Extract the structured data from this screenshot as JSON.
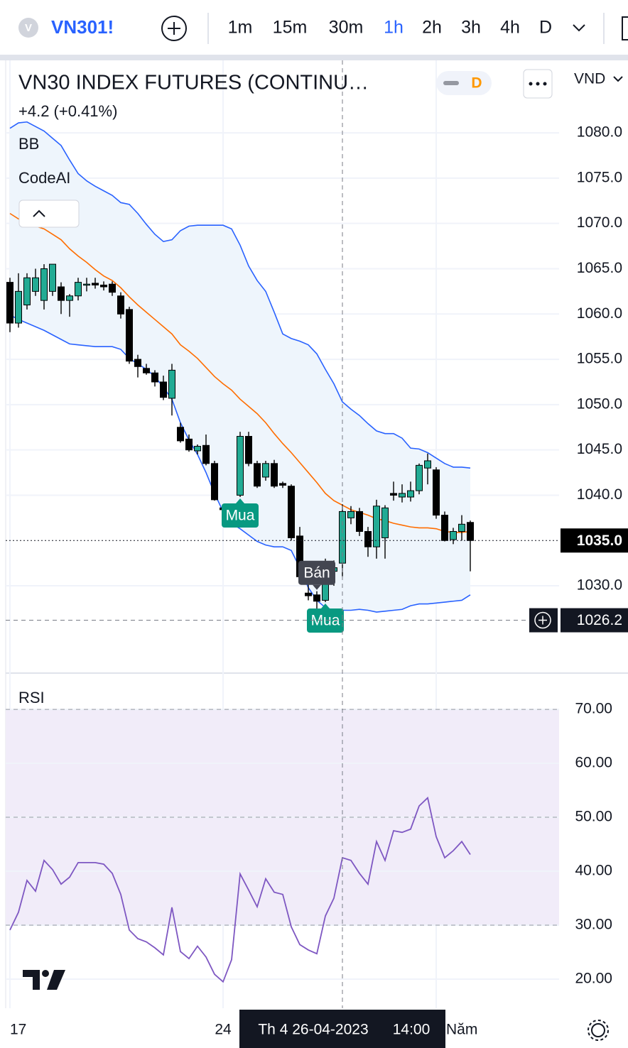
{
  "header": {
    "symbol": "VN301!",
    "logo": "V",
    "timeframes": [
      "1m",
      "15m",
      "30m",
      "1h",
      "2h",
      "3h",
      "4h",
      "D"
    ],
    "active_timeframe": 3
  },
  "legend": {
    "title": "VN30 INDEX FUTURES (CONTINU…",
    "change": "+4.2 (+0.41%)",
    "indicators": [
      "BB",
      "CodeAI"
    ],
    "badge": "D",
    "currency": "VND"
  },
  "crosshair": {
    "date": "Th 4 26-04-2023",
    "time": "14:00",
    "x": 39,
    "price": 1026.2
  },
  "chart_data": [
    {
      "type": "candlestick",
      "categories": [
        "17",
        null,
        null,
        null,
        null,
        null,
        null,
        null,
        null,
        null,
        null,
        null,
        null,
        null,
        null,
        null,
        null,
        null,
        null,
        null,
        null,
        null,
        null,
        null,
        null,
        "24",
        null,
        null,
        null,
        null,
        null,
        null,
        null,
        null,
        null,
        null,
        null,
        null,
        null,
        null,
        null,
        null,
        null,
        null,
        null,
        null,
        null,
        null,
        null,
        null,
        "Năm",
        null,
        null,
        null,
        null
      ],
      "open": [
        1063.5,
        1059,
        1061,
        1062.5,
        1061.5,
        1062.5,
        1063,
        1061.5,
        1062,
        1063.2,
        1063.4,
        1063.2,
        1063.3,
        1062,
        1060.5,
        1055,
        1054,
        1053.5,
        1052.5,
        1050.7,
        1047.5,
        1046.2,
        1044.9,
        1045.5,
        1043.5,
        1038.6,
        1038.5,
        1040,
        1046.5,
        1043.5,
        1042,
        1043.5,
        1041.3,
        1041,
        1035.5,
        1029.2,
        1029,
        1028.4,
        1031.6,
        1032.5,
        1037.5,
        1038.2,
        1036,
        1034.3,
        1035.3,
        1040.2,
        1039.8,
        1039.8,
        1040.5,
        1043,
        1042.8,
        1037.8,
        1035.1,
        1036,
        1037
      ],
      "high": [
        1064,
        1064.5,
        1064.5,
        1065,
        1065.5,
        1065.5,
        1063.5,
        1062.2,
        1064,
        1064,
        1064,
        1063.6,
        1063.6,
        1062.4,
        1060.8,
        1055.5,
        1054.5,
        1053.8,
        1053.2,
        1054.5,
        1048,
        1046.7,
        1045.6,
        1046.7,
        1043.8,
        1038.8,
        1039,
        1047,
        1047,
        1043.8,
        1043.8,
        1043.9,
        1041.5,
        1041.2,
        1036.5,
        1030.5,
        1029.4,
        1033,
        1032.8,
        1039,
        1038.8,
        1038.6,
        1036.5,
        1039.5,
        1038.9,
        1041.5,
        1041.2,
        1041.5,
        1043.5,
        1044.6,
        1043.1,
        1038.2,
        1036.4,
        1037.8,
        1037.2
      ],
      "low": [
        1058,
        1058.5,
        1060.5,
        1062,
        1060.5,
        1062,
        1060,
        1059.7,
        1061.5,
        1062.5,
        1062.8,
        1062.6,
        1062,
        1059.5,
        1054.5,
        1053,
        1053.3,
        1052,
        1050.5,
        1048.8,
        1045.8,
        1044.8,
        1044.5,
        1043.3,
        1039.4,
        1037.5,
        1038,
        1039.8,
        1043.2,
        1040.8,
        1041.6,
        1040.8,
        1040.8,
        1035,
        1030.8,
        1028.4,
        1026.6,
        1028.2,
        1030,
        1031,
        1036.8,
        1035.5,
        1033.2,
        1033,
        1033,
        1039.4,
        1039.2,
        1039.3,
        1040.1,
        1041.2,
        1037.4,
        1034.9,
        1034.6,
        1035,
        1031.6
      ],
      "close": [
        1059,
        1062.5,
        1064,
        1064,
        1065,
        1065.5,
        1061.5,
        1062,
        1063.5,
        1063.3,
        1063.2,
        1063,
        1062.4,
        1060,
        1054.8,
        1054.2,
        1053.5,
        1052.5,
        1050.8,
        1053.8,
        1046,
        1045,
        1045.4,
        1043.5,
        1039.5,
        1038.4,
        1038.6,
        1046.5,
        1043.5,
        1041,
        1043.5,
        1041,
        1041.1,
        1035.3,
        1031,
        1028.9,
        1028.3,
        1032,
        1032,
        1038.2,
        1038.2,
        1036,
        1034.3,
        1038.8,
        1038.6,
        1040,
        1040.2,
        1040.5,
        1043.3,
        1043.8,
        1037.8,
        1035,
        1036,
        1036.8,
        1035
      ],
      "up_color": "#22ab94",
      "down_color": "#000000",
      "bands": {
        "upper": [
          1080.5,
          1081.1,
          1081.2,
          1080.7,
          1080.2,
          1079.4,
          1078.6,
          1077.0,
          1075.5,
          1074.7,
          1074.1,
          1073.6,
          1073.1,
          1072.3,
          1072.1,
          1071.1,
          1069.9,
          1068.8,
          1068.0,
          1068.2,
          1069.2,
          1069.7,
          1069.8,
          1069.8,
          1069.8,
          1069.8,
          1069.4,
          1067.6,
          1065.3,
          1063.7,
          1062.5,
          1060.2,
          1057.8,
          1057.3,
          1057.0,
          1056.6,
          1055.6,
          1053.9,
          1052.3,
          1050.3,
          1049.5,
          1048.8,
          1047.9,
          1047.1,
          1046.8,
          1046.8,
          1046.3,
          1045.2,
          1045.1,
          1044.7,
          1044.1,
          1043.5,
          1043.1,
          1043.1,
          1043.0
        ],
        "basis": [
          1071.1,
          1070.5,
          1070.1,
          1069.7,
          1069.4,
          1068.8,
          1068.2,
          1067.2,
          1066.4,
          1065.7,
          1064.9,
          1064.2,
          1063.7,
          1062.9,
          1061.9,
          1061.0,
          1060.2,
          1059.4,
          1058.6,
          1057.8,
          1056.6,
          1055.9,
          1055.1,
          1054.1,
          1053.1,
          1052.3,
          1051.6,
          1050.6,
          1049.8,
          1049.0,
          1048.0,
          1046.8,
          1045.7,
          1044.7,
          1043.6,
          1042.5,
          1041.4,
          1040.2,
          1039.4,
          1038.9,
          1038.4,
          1038.1,
          1037.8,
          1037.4,
          1037.2,
          1036.9,
          1036.7,
          1036.5,
          1036.4,
          1036.4,
          1036.3,
          1036.0,
          1035.9,
          1035.9,
          1036.0
        ],
        "lower": [
          1059.9,
          1059.4,
          1059.0,
          1058.6,
          1058.2,
          1057.7,
          1057.2,
          1056.7,
          1056.6,
          1056.5,
          1056.4,
          1056.4,
          1056.4,
          1056.1,
          1055.1,
          1054.5,
          1053.9,
          1053.1,
          1051.9,
          1050.6,
          1048.0,
          1046.1,
          1044.5,
          1042.5,
          1040.2,
          1038.2,
          1036.9,
          1036.3,
          1035.6,
          1034.9,
          1034.5,
          1034.3,
          1034.3,
          1033.9,
          1032.0,
          1029.8,
          1028.4,
          1027.6,
          1027.3,
          1027.3,
          1027.3,
          1027.4,
          1027.3,
          1027.1,
          1027.2,
          1027.3,
          1027.4,
          1027.8,
          1028.0,
          1028.0,
          1028.1,
          1028.2,
          1028.3,
          1028.4,
          1029.0
        ],
        "band_color": "#2962ff",
        "basis_color": "#ff6d00",
        "fill": "#eef5fc"
      },
      "annotations": [
        {
          "text": "Mua",
          "x": 27,
          "position": "below",
          "color": "#089981"
        },
        {
          "text": "Bán",
          "x": 36,
          "position": "above",
          "color": "#434651"
        },
        {
          "text": "Mua",
          "x": 37,
          "position": "below",
          "color": "#089981"
        }
      ],
      "last_price": {
        "value": 1035,
        "label": "1035.0"
      },
      "ylim": [
        1020.6,
        1088.0
      ],
      "yticks": [
        {
          "value": 1030,
          "label": "1030.0"
        },
        {
          "value": 1040,
          "label": "1040.0"
        },
        {
          "value": 1045,
          "label": "1045.0"
        },
        {
          "value": 1050,
          "label": "1050.0"
        },
        {
          "value": 1055,
          "label": "1055.0"
        },
        {
          "value": 1060,
          "label": "1060.0"
        },
        {
          "value": 1065,
          "label": "1065.0"
        },
        {
          "value": 1070,
          "label": "1070.0"
        },
        {
          "value": 1075,
          "label": "1075.0"
        },
        {
          "value": 1080,
          "label": "1080.0"
        }
      ],
      "grid": true
    },
    {
      "type": "line",
      "title": "RSI",
      "color": "#7e57c2",
      "values": [
        29.1,
        32.4,
        38.3,
        36.3,
        42.0,
        40.3,
        37.6,
        38.9,
        41.6,
        41.6,
        41.6,
        41.3,
        39.6,
        35.7,
        29.1,
        27.5,
        26.9,
        25.8,
        24.5,
        33.3,
        25.1,
        23.8,
        26.1,
        24.1,
        20.9,
        19.5,
        23.6,
        39.5,
        36.5,
        33.4,
        38.6,
        36.1,
        35.7,
        29.7,
        26.4,
        25.4,
        24.7,
        31.7,
        35.0,
        42.5,
        42.0,
        39.6,
        37.6,
        45.5,
        42.0,
        47.5,
        47.2,
        47.8,
        52.1,
        53.6,
        46.4,
        42.5,
        43.8,
        45.5,
        43.1
      ],
      "band": [
        30,
        70
      ],
      "band_fill": "#f1ecf9",
      "levels": [
        30,
        50,
        70
      ],
      "ylim": [
        14.6,
        75.8
      ],
      "yticks": [
        {
          "value": 20,
          "label": "20.00"
        },
        {
          "value": 30,
          "label": "30.00"
        },
        {
          "value": 40,
          "label": "40.00"
        },
        {
          "value": 50,
          "label": "50.00"
        },
        {
          "value": 60,
          "label": "60.00"
        },
        {
          "value": 70,
          "label": "70.00"
        }
      ],
      "grid": true
    }
  ]
}
